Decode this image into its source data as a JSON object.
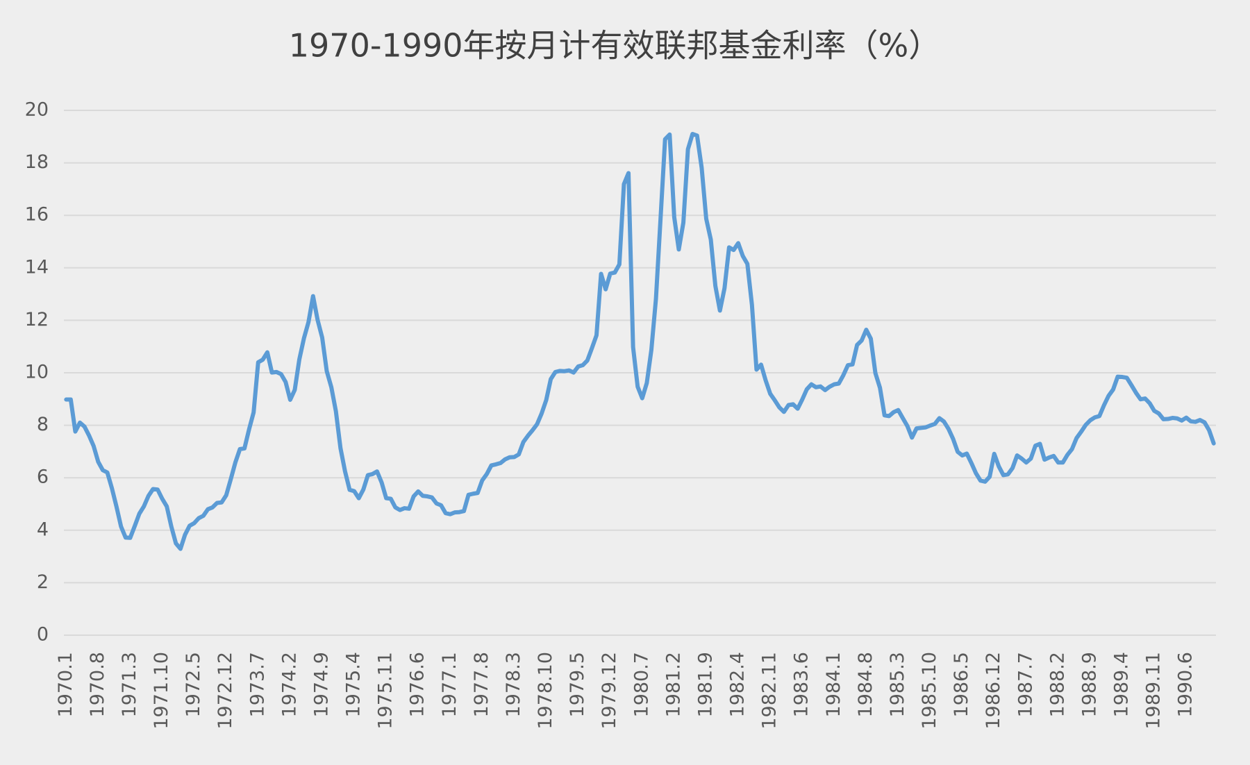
{
  "chart_data": {
    "type": "line",
    "title": "1970-1990年按月计有效联邦基金利率（%）",
    "categories": [
      "1970.1",
      null,
      null,
      null,
      null,
      null,
      null,
      "1970.8",
      null,
      null,
      null,
      null,
      null,
      null,
      "1971.3",
      null,
      null,
      null,
      null,
      null,
      null,
      "1971.10",
      null,
      null,
      null,
      null,
      null,
      null,
      "1972.5",
      null,
      null,
      null,
      null,
      null,
      null,
      "1972.12",
      null,
      null,
      null,
      null,
      null,
      null,
      "1973.7",
      null,
      null,
      null,
      null,
      null,
      null,
      "1974.2",
      null,
      null,
      null,
      null,
      null,
      null,
      "1974.9",
      null,
      null,
      null,
      null,
      null,
      null,
      "1975.4",
      null,
      null,
      null,
      null,
      null,
      null,
      "1975.11",
      null,
      null,
      null,
      null,
      null,
      null,
      "1976.6",
      null,
      null,
      null,
      null,
      null,
      null,
      "1977.1",
      null,
      null,
      null,
      null,
      null,
      null,
      "1977.8",
      null,
      null,
      null,
      null,
      null,
      null,
      "1978.3",
      null,
      null,
      null,
      null,
      null,
      null,
      "1978.10",
      null,
      null,
      null,
      null,
      null,
      null,
      "1979.5",
      null,
      null,
      null,
      null,
      null,
      null,
      "1979.12",
      null,
      null,
      null,
      null,
      null,
      null,
      "1980.7",
      null,
      null,
      null,
      null,
      null,
      null,
      "1981.2",
      null,
      null,
      null,
      null,
      null,
      null,
      "1981.9",
      null,
      null,
      null,
      null,
      null,
      null,
      "1982.4",
      null,
      null,
      null,
      null,
      null,
      null,
      "1982.11",
      null,
      null,
      null,
      null,
      null,
      null,
      "1983.6",
      null,
      null,
      null,
      null,
      null,
      null,
      "1984.1",
      null,
      null,
      null,
      null,
      null,
      null,
      "1984.8",
      null,
      null,
      null,
      null,
      null,
      null,
      "1985.3",
      null,
      null,
      null,
      null,
      null,
      null,
      "1985.10",
      null,
      null,
      null,
      null,
      null,
      null,
      "1986.5",
      null,
      null,
      null,
      null,
      null,
      null,
      "1986.12",
      null,
      null,
      null,
      null,
      null,
      null,
      "1987.7",
      null,
      null,
      null,
      null,
      null,
      null,
      "1988.2",
      null,
      null,
      null,
      null,
      null,
      null,
      "1988.9",
      null,
      null,
      null,
      null,
      null,
      null,
      "1989.4",
      null,
      null,
      null,
      null,
      null,
      null,
      "1989.11",
      null,
      null,
      null,
      null,
      null,
      null,
      "1990.6",
      null,
      null,
      null,
      null,
      null,
      null
    ],
    "values": [
      8.98,
      8.98,
      7.76,
      8.1,
      7.95,
      7.61,
      7.21,
      6.61,
      6.29,
      6.2,
      5.6,
      4.9,
      4.14,
      3.72,
      3.71,
      4.16,
      4.63,
      4.91,
      5.31,
      5.57,
      5.55,
      5.2,
      4.91,
      4.14,
      3.5,
      3.29,
      3.83,
      4.17,
      4.27,
      4.46,
      4.55,
      4.8,
      4.87,
      5.04,
      5.06,
      5.33,
      5.94,
      6.58,
      7.09,
      7.12,
      7.84,
      8.49,
      10.4,
      10.5,
      10.78,
      10.01,
      10.03,
      9.95,
      9.65,
      8.97,
      9.35,
      10.51,
      11.31,
      11.93,
      12.92,
      12.01,
      11.34,
      10.06,
      9.45,
      8.53,
      7.13,
      6.24,
      5.54,
      5.49,
      5.22,
      5.55,
      6.1,
      6.14,
      6.24,
      5.82,
      5.22,
      5.2,
      4.87,
      4.77,
      4.84,
      4.82,
      5.29,
      5.48,
      5.31,
      5.29,
      5.25,
      5.02,
      4.95,
      4.65,
      4.61,
      4.68,
      4.69,
      4.73,
      5.35,
      5.39,
      5.42,
      5.9,
      6.14,
      6.47,
      6.51,
      6.56,
      6.7,
      6.78,
      6.79,
      6.89,
      7.36,
      7.6,
      7.81,
      8.04,
      8.45,
      8.96,
      9.76,
      10.03,
      10.07,
      10.06,
      10.09,
      10.01,
      10.24,
      10.29,
      10.47,
      10.94,
      11.43,
      13.77,
      13.18,
      13.78,
      13.82,
      14.13,
      17.19,
      17.61,
      10.98,
      9.47,
      9.03,
      9.61,
      10.87,
      12.81,
      15.85,
      18.9,
      19.08,
      15.93,
      14.7,
      15.72,
      18.52,
      19.1,
      19.04,
      17.82,
      15.87,
      15.08,
      13.31,
      12.37,
      13.22,
      14.78,
      14.68,
      14.94,
      14.45,
      14.15,
      12.59,
      10.12,
      10.31,
      9.71,
      9.2,
      8.95,
      8.68,
      8.51,
      8.77,
      8.8,
      8.63,
      8.98,
      9.37,
      9.56,
      9.45,
      9.48,
      9.34,
      9.47,
      9.56,
      9.59,
      9.91,
      10.29,
      10.32,
      11.06,
      11.23,
      11.64,
      11.3,
      9.99,
      9.43,
      8.38,
      8.35,
      8.5,
      8.58,
      8.27,
      7.97,
      7.53,
      7.88,
      7.9,
      7.92,
      7.99,
      8.05,
      8.27,
      8.14,
      7.86,
      7.48,
      6.99,
      6.85,
      6.92,
      6.56,
      6.17,
      5.89,
      5.85,
      6.04,
      6.91,
      6.43,
      6.1,
      6.13,
      6.37,
      6.85,
      6.73,
      6.58,
      6.73,
      7.22,
      7.29,
      6.69,
      6.77,
      6.83,
      6.58,
      6.58,
      6.87,
      7.09,
      7.51,
      7.75,
      8.01,
      8.19,
      8.3,
      8.35,
      8.76,
      9.12,
      9.36,
      9.85,
      9.84,
      9.81,
      9.53,
      9.24,
      8.99,
      9.02,
      8.84,
      8.55,
      8.45,
      8.23,
      8.24,
      8.28,
      8.26,
      8.18,
      8.29,
      8.15,
      8.13,
      8.2,
      8.11,
      7.81,
      7.31
    ],
    "color": "#5b9bd5",
    "ylim": [
      0,
      20
    ],
    "yticks": [
      0,
      2,
      4,
      6,
      8,
      10,
      12,
      14,
      16,
      18,
      20
    ],
    "grid": true
  }
}
